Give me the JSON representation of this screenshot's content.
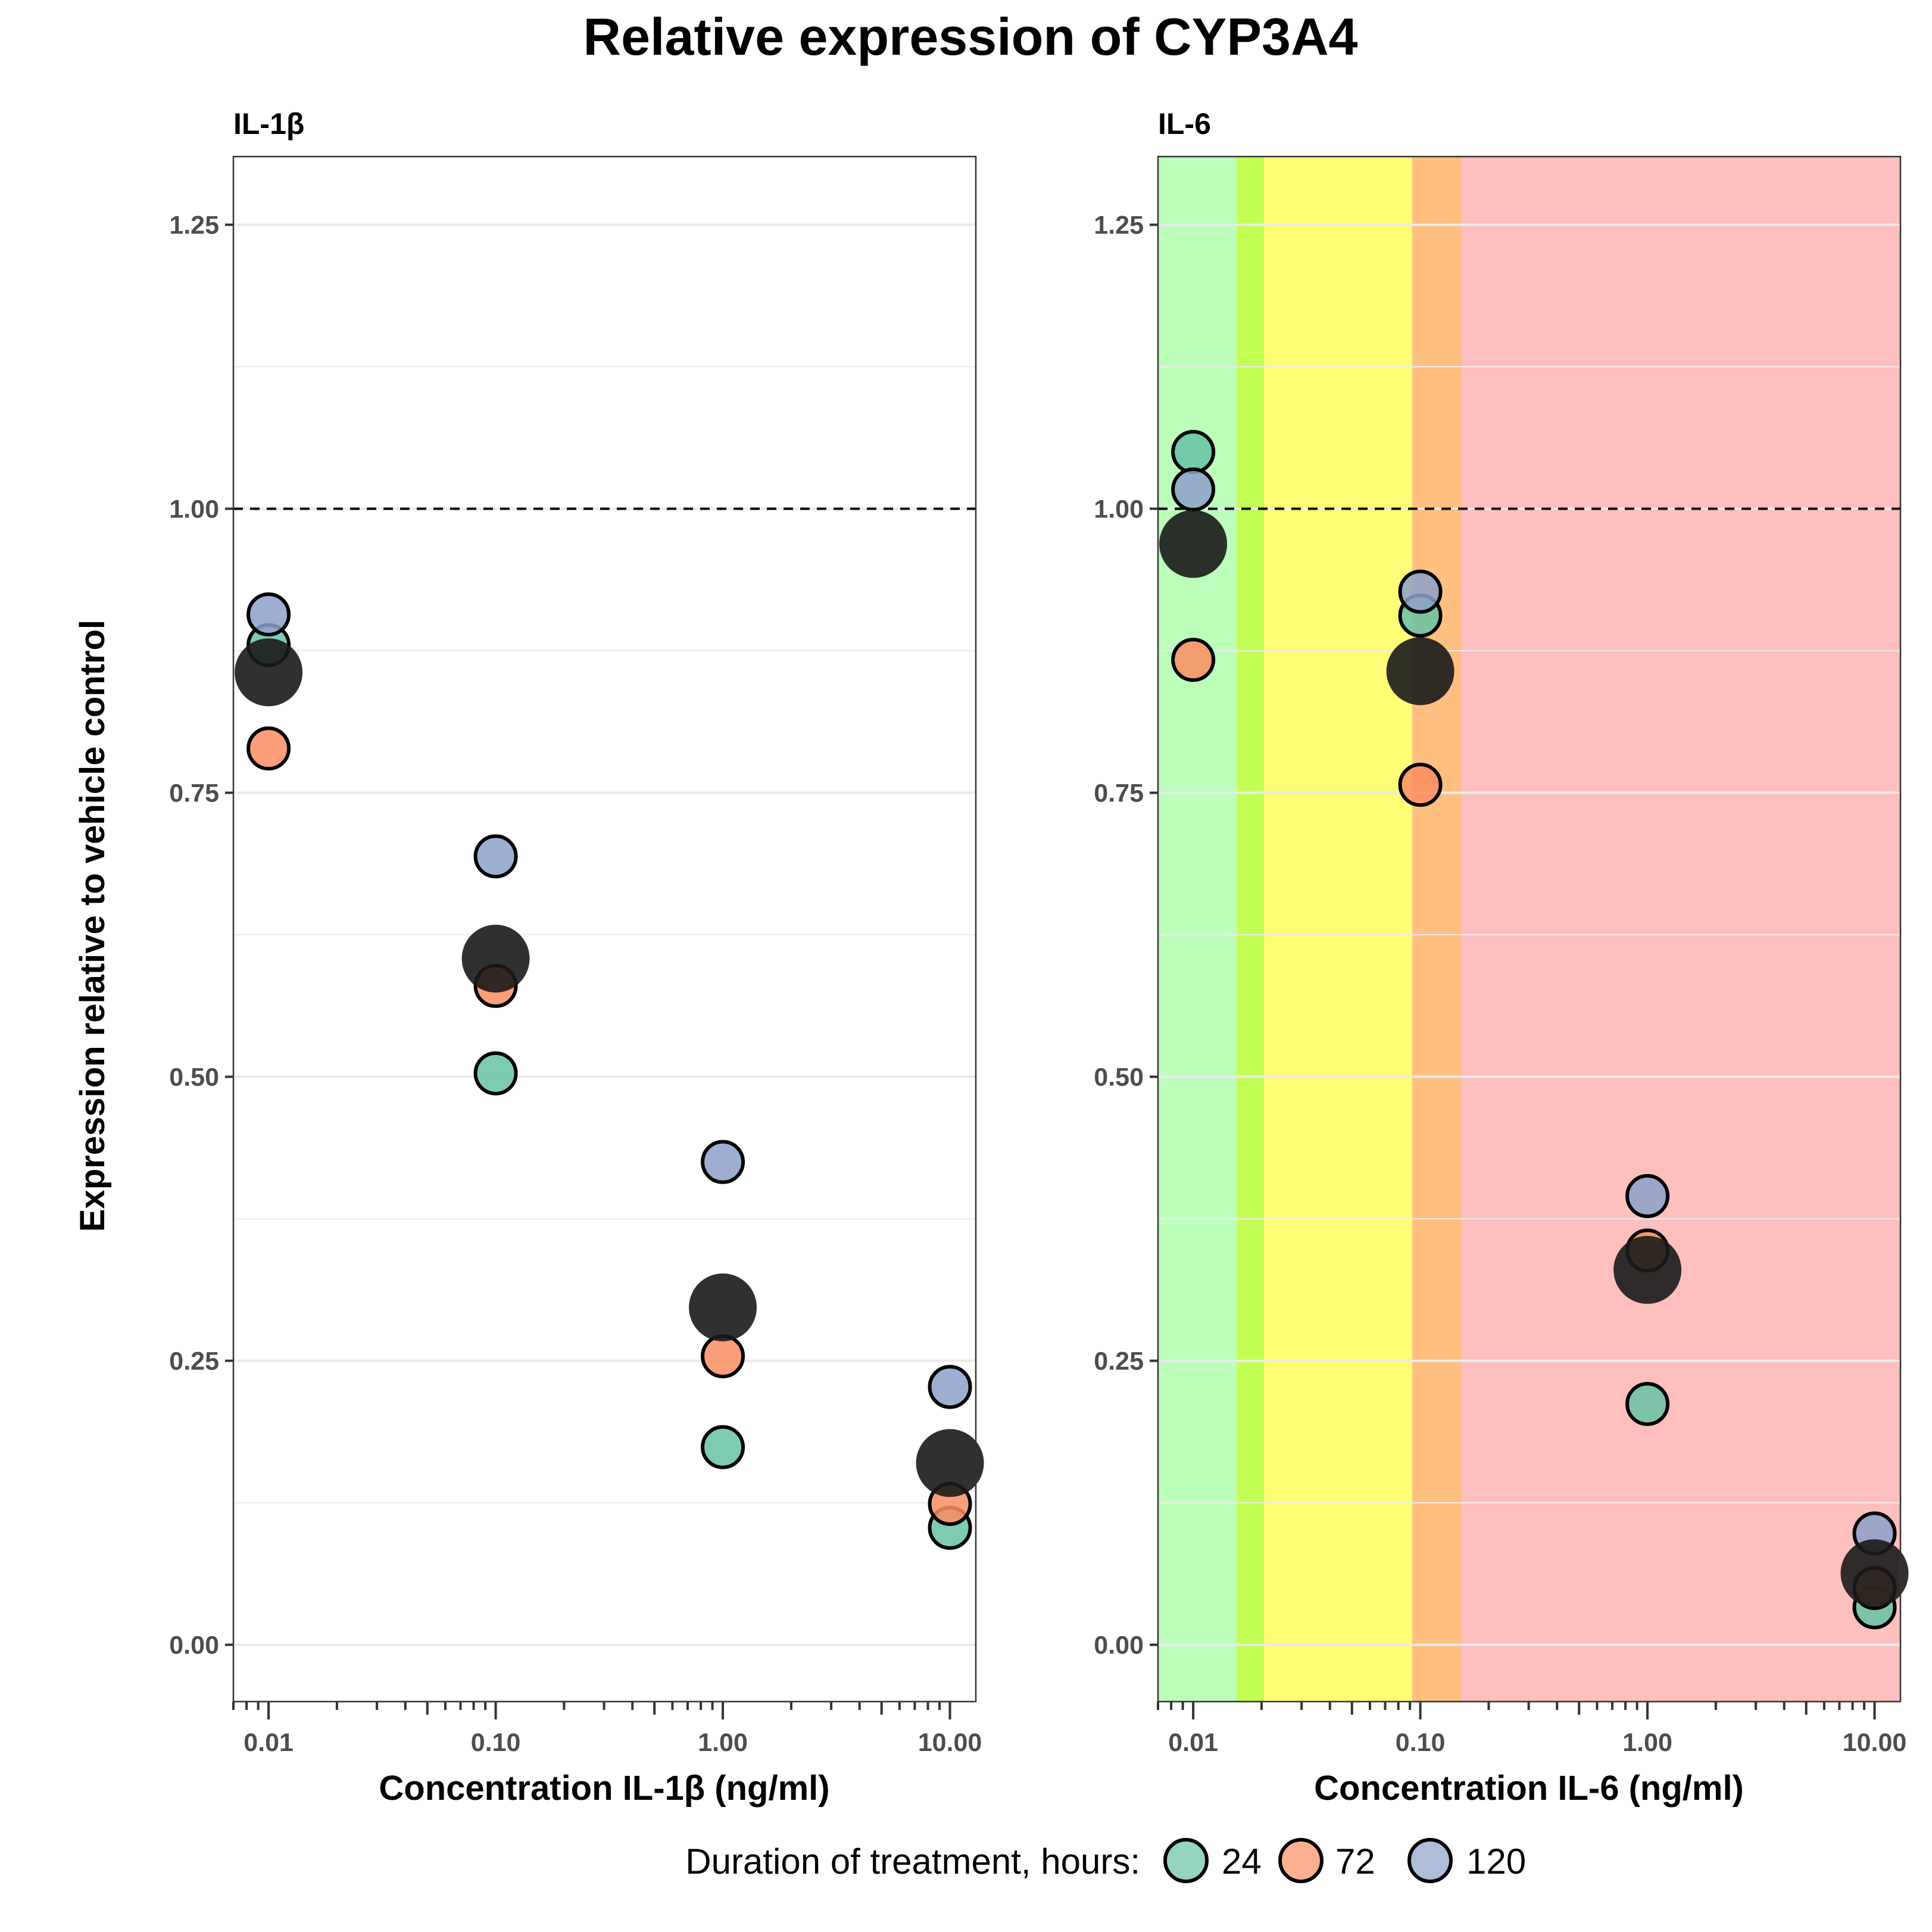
{
  "title": "Relative expression of CYP3A4",
  "chart_data": {
    "type": "scatter",
    "title": "Relative expression of CYP3A4",
    "ylabel": "Expression relative to vehicle control",
    "ylim": [
      -0.05,
      1.31
    ],
    "y_ticks": [
      "0.00",
      "0.25",
      "0.50",
      "0.75",
      "1.00",
      "1.25"
    ],
    "x_scale": "log10",
    "xlim": [
      0.007,
      13
    ],
    "x_ticks": [
      "0.01",
      "0.10",
      "1.00",
      "10.00"
    ],
    "reference_line": {
      "y": 1.0,
      "style": "dashed"
    },
    "grid": true,
    "legend": {
      "title": "Duration of treatment, hours:",
      "position": "bottom",
      "entries": [
        {
          "label": "24",
          "color": "#66c2a5"
        },
        {
          "label": "72",
          "color": "#fc8d62"
        },
        {
          "label": "120",
          "color": "#8da0cb"
        }
      ]
    },
    "mean_marker_color": "#1a1a1a",
    "panels": [
      {
        "strip": "IL-1β",
        "xlabel": "Concentration IL-1β (ng/ml)",
        "x": [
          0.01,
          0.1,
          1,
          10
        ],
        "series": [
          {
            "name": "24",
            "color": "#66c2a5",
            "values": [
              0.88,
              0.503,
              0.174,
              0.103
            ]
          },
          {
            "name": "72",
            "color": "#fc8d62",
            "values": [
              0.789,
              0.58,
              0.254,
              0.124
            ]
          },
          {
            "name": "120",
            "color": "#8da0cb",
            "values": [
              0.907,
              0.694,
              0.425,
              0.227
            ]
          }
        ],
        "means": [
          0.856,
          0.604,
          0.297,
          0.16
        ],
        "background_bands": []
      },
      {
        "strip": "IL-6",
        "xlabel": "Concentration IL-6 (ng/ml)",
        "x": [
          0.01,
          0.1,
          1,
          10
        ],
        "series": [
          {
            "name": "24",
            "color": "#66c2a5",
            "values": [
              1.05,
              0.906,
              0.212,
              0.033
            ]
          },
          {
            "name": "72",
            "color": "#fc8d62",
            "values": [
              0.867,
              0.757,
              0.347,
              0.05
            ]
          },
          {
            "name": "120",
            "color": "#8da0cb",
            "values": [
              1.017,
              0.927,
              0.395,
              0.098
            ]
          }
        ],
        "means": [
          0.969,
          0.857,
          0.33,
          0.063
        ],
        "background_bands": [
          {
            "from": 0.007,
            "to": 0.0155,
            "color": "#bbffbb"
          },
          {
            "from": 0.0155,
            "to": 0.0205,
            "color": "#c4ff55"
          },
          {
            "from": 0.0205,
            "to": 0.092,
            "color": "#ffff77"
          },
          {
            "from": 0.092,
            "to": 0.152,
            "color": "#ffbf80"
          },
          {
            "from": 0.152,
            "to": 13,
            "color": "#ffbfbf"
          }
        ]
      }
    ]
  }
}
